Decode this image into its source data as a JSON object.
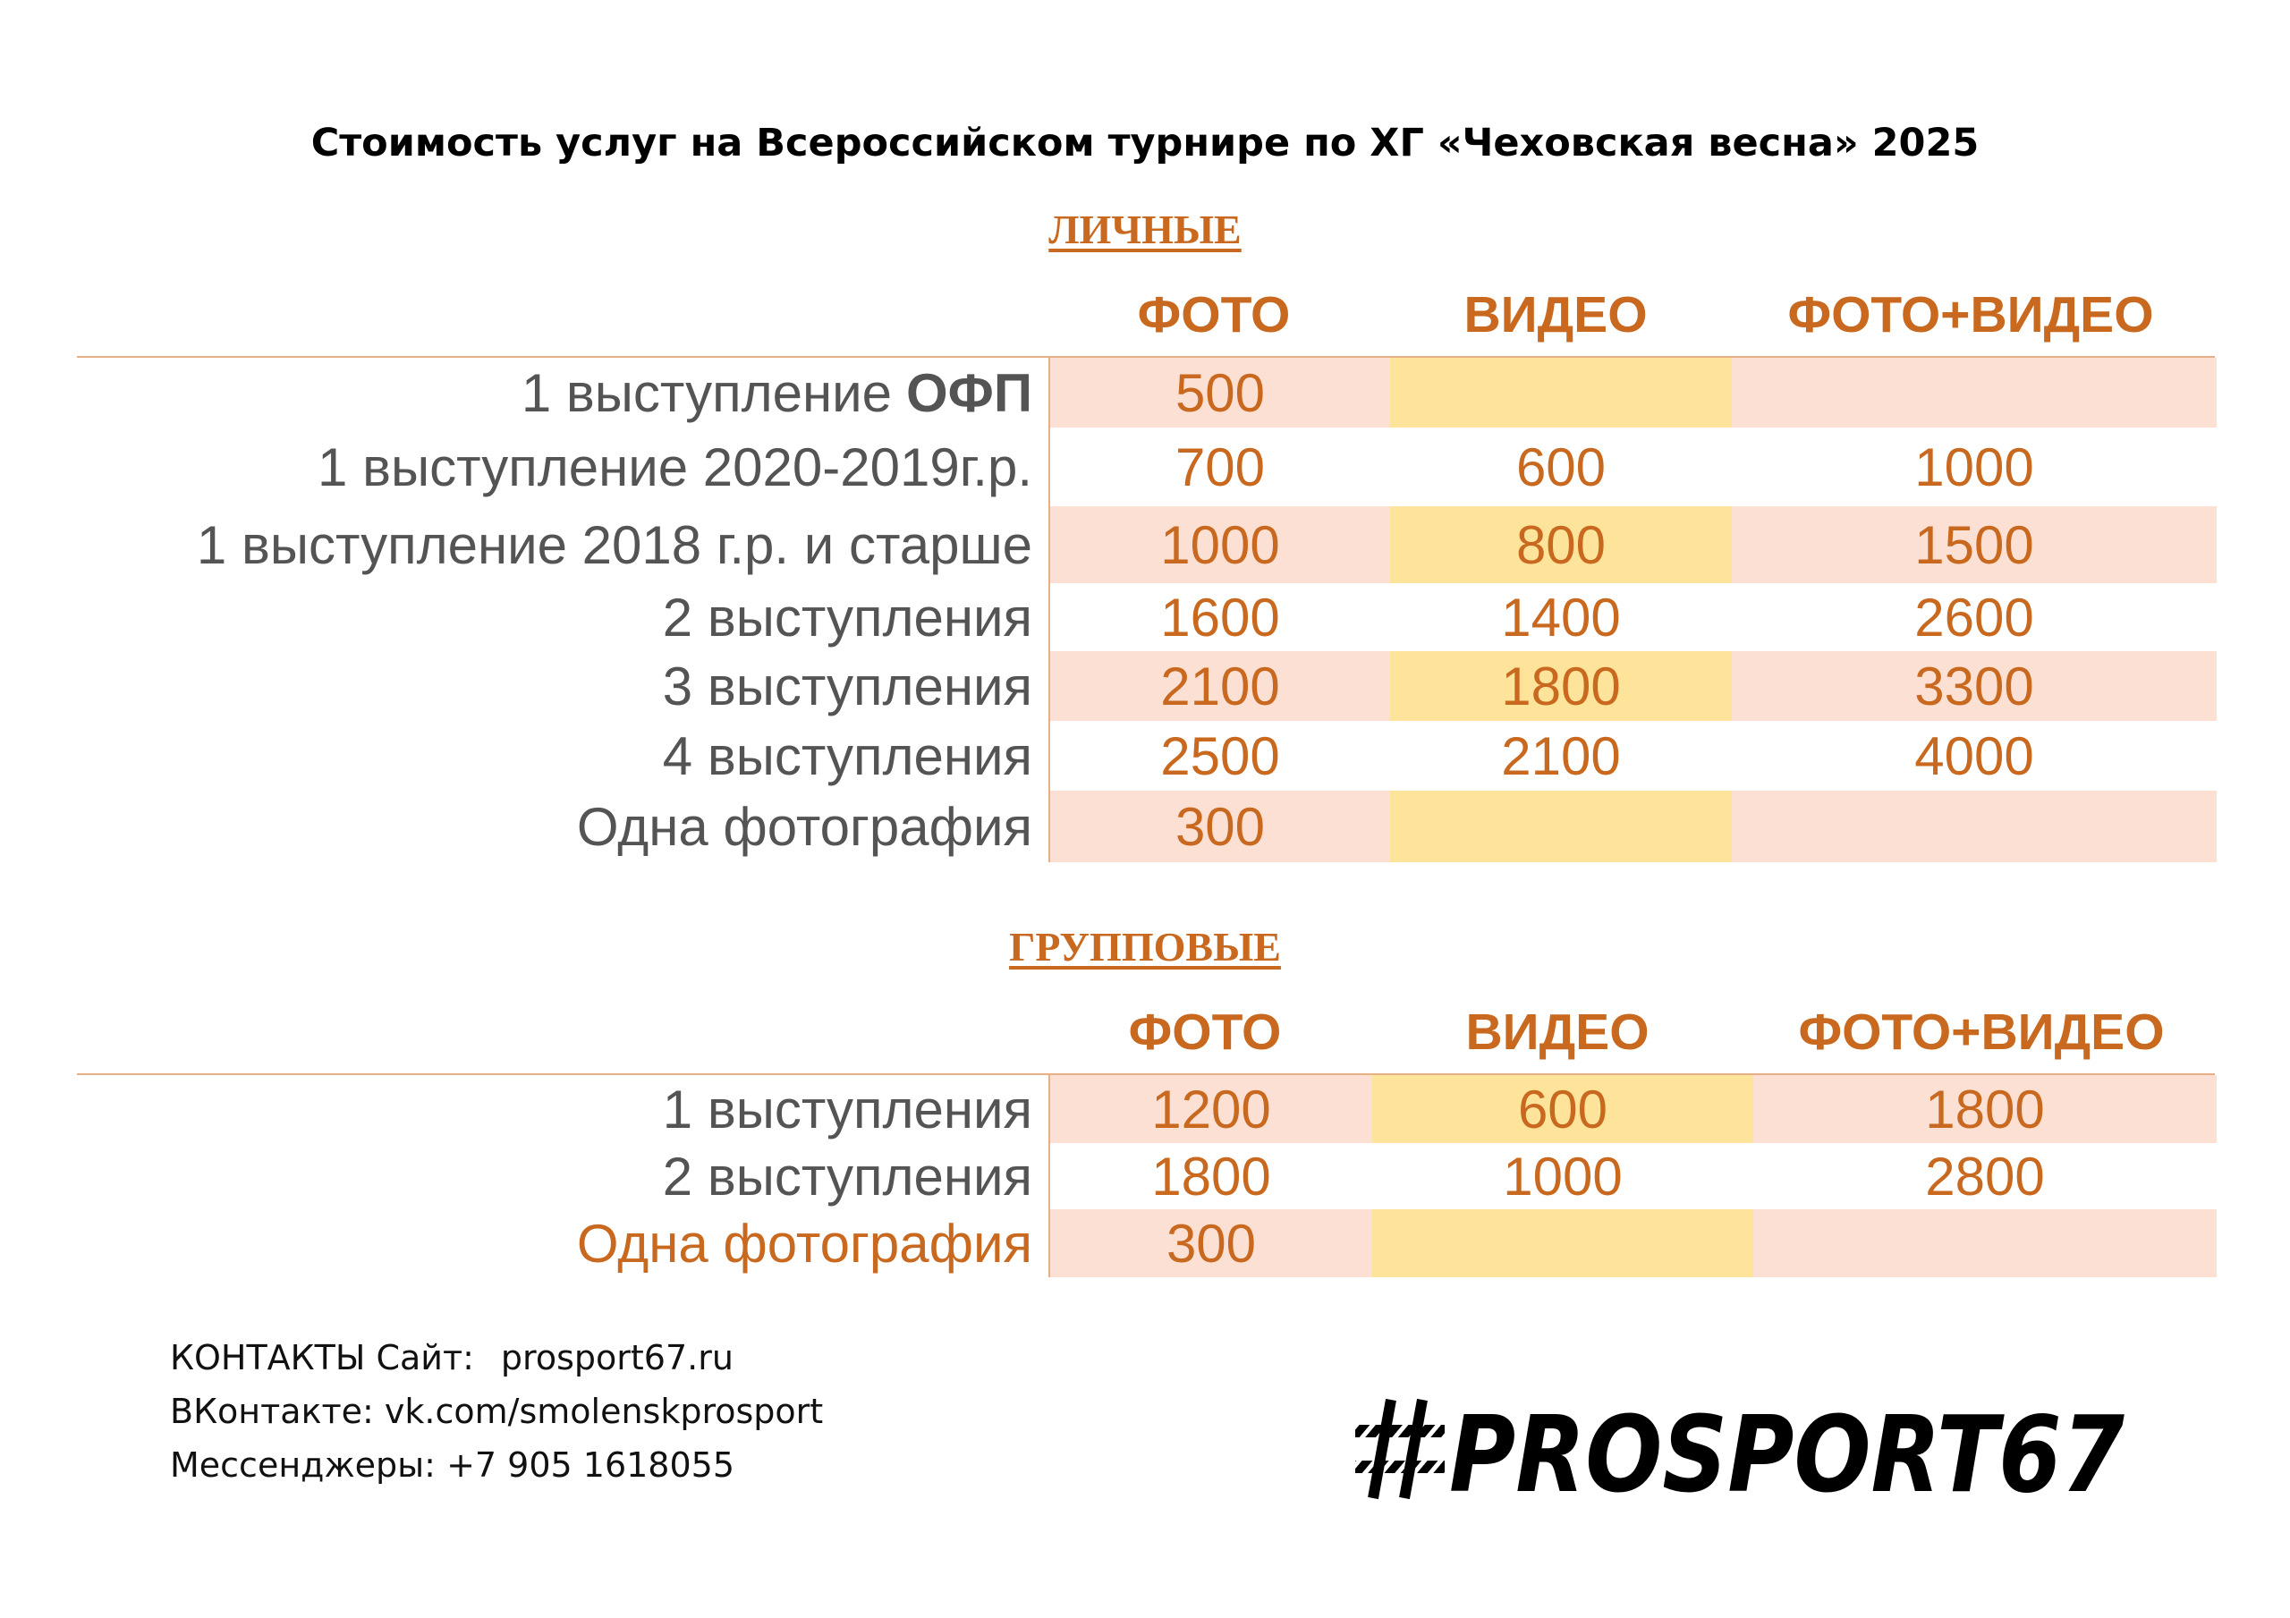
{
  "title": "Стоимость услуг на Всероссийском турнире по ХГ «Чеховская весна» 2025",
  "personal": {
    "title": "ЛИЧНЫЕ",
    "headers": [
      "ФОТО",
      "ВИДЕО",
      "ФОТО+ВИДЕО"
    ],
    "rows": [
      {
        "label": "1 выступление",
        "label_bold": "ОФП",
        "foto": "500",
        "video": "",
        "both": ""
      },
      {
        "label": "1 выступление 2020-2019г.р.",
        "foto": "700",
        "video": "600",
        "both": "1000"
      },
      {
        "label": "1 выступление 2018 г.р. и старше",
        "foto": "1000",
        "video": "800",
        "both": "1500"
      },
      {
        "label": "2 выступления",
        "foto": "1600",
        "video": "1400",
        "both": "2600"
      },
      {
        "label": "3 выступления",
        "foto": "2100",
        "video": "1800",
        "both": "3300"
      },
      {
        "label": "4 выступления",
        "foto": "2500",
        "video": "2100",
        "both": "4000"
      },
      {
        "label": "Одна фотография",
        "foto": "300",
        "video": "",
        "both": ""
      }
    ]
  },
  "group": {
    "title": "ГРУППОВЫЕ",
    "headers": [
      "ФОТО",
      "ВИДЕО",
      "ФОТО+ВИДЕО"
    ],
    "rows": [
      {
        "label": "1 выступления",
        "foto": "1200",
        "video": "600",
        "both": "1800"
      },
      {
        "label": "2 выступления",
        "foto": "1800",
        "video": "1000",
        "both": "2800"
      },
      {
        "label": "Одна фотография",
        "foto": "300",
        "video": "",
        "both": ""
      }
    ]
  },
  "contacts": {
    "site_label": "КОНТАКТЫ Сайт:",
    "site": "prosport67.ru",
    "vk": "ВКонтакте: vk.com/smolenskprosport",
    "phone": "Мессенджеры: +7 905 1618055"
  },
  "logo_text": "#PROSPORT67",
  "colors": {
    "accent": "#c8691f",
    "pink": "#fde0d4",
    "yellow": "#fde49a",
    "label_gray": "#545454"
  }
}
